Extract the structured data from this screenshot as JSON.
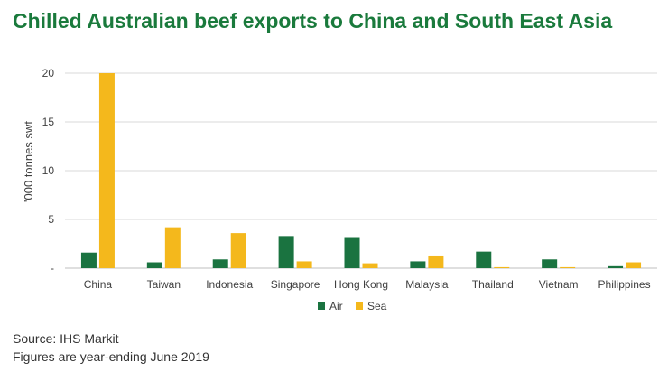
{
  "title": "Chilled Australian beef exports to China and South East Asia",
  "footer": {
    "source": "Source: IHS Markit",
    "note": "Figures are year-ending June 2019"
  },
  "colors": {
    "air": "#1a7340",
    "sea": "#f4b81c",
    "title": "#1a7a3c",
    "axis_text": "#404040"
  },
  "chart_data": {
    "type": "bar",
    "categories": [
      "China",
      "Taiwan",
      "Indonesia",
      "Singapore",
      "Hong Kong",
      "Malaysia",
      "Thailand",
      "Vietnam",
      "Philippines"
    ],
    "series": [
      {
        "name": "Air",
        "color": "#1a7340",
        "values": [
          1.6,
          0.6,
          0.9,
          3.3,
          3.1,
          0.7,
          1.7,
          0.9,
          0.2
        ]
      },
      {
        "name": "Sea",
        "color": "#f4b81c",
        "values": [
          20.0,
          4.2,
          3.6,
          0.7,
          0.5,
          1.3,
          0.1,
          0.1,
          0.6
        ]
      }
    ],
    "ylabel": "'000 tonnes swt",
    "xlabel": "",
    "ylim": [
      0,
      20
    ],
    "yticks": [
      0,
      5,
      10,
      15,
      20
    ],
    "ytick_labels": [
      "-",
      "5",
      "10",
      "15",
      "20"
    ],
    "grid": true,
    "legend_position": "bottom"
  }
}
